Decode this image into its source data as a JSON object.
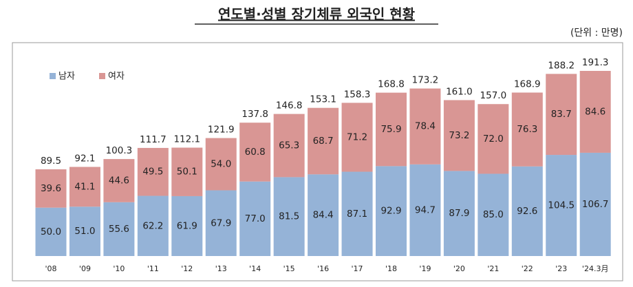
{
  "chart_data": {
    "type": "bar",
    "stacked": true,
    "title": "연도별·성별 장기체류 외국인 현황",
    "subtitle": "(단위 : 만명)",
    "categories": [
      "'08",
      "'09",
      "'10",
      "'11",
      "'12",
      "'13",
      "'14",
      "'15",
      "'16",
      "'17",
      "'18",
      "'19",
      "'20",
      "'21",
      "'22",
      "'23",
      "'24.3月"
    ],
    "series": [
      {
        "name": "남자",
        "color": "#95b3d7",
        "values": [
          50.0,
          51.0,
          55.6,
          62.2,
          61.9,
          67.9,
          77.0,
          81.5,
          84.4,
          87.1,
          92.9,
          94.7,
          87.9,
          85.0,
          92.6,
          104.5,
          106.7
        ],
        "value_labels": [
          "50.0",
          "51.0",
          "55.6",
          "62.2",
          "61.9",
          "67.9",
          "77.0",
          "81.5",
          "84.4",
          "87.1",
          "92.9",
          "94.7",
          "87.9",
          "85.0",
          "92.6",
          "104.5",
          "106.7"
        ]
      },
      {
        "name": "여자",
        "color": "#d99694",
        "values": [
          39.6,
          41.1,
          44.6,
          49.5,
          50.1,
          54.0,
          60.8,
          65.3,
          68.7,
          71.2,
          75.9,
          78.4,
          73.2,
          72.0,
          76.3,
          83.7,
          84.6
        ],
        "value_labels": [
          "39.6",
          "41.1",
          "44.6",
          "49.5",
          "50.1",
          "54.0",
          "60.8",
          "65.3",
          "68.7",
          "71.2",
          "75.9",
          "78.4",
          "73.2",
          "72.0",
          "76.3",
          "83.7",
          "84.6"
        ]
      }
    ],
    "totals": [
      89.5,
      92.1,
      100.3,
      111.7,
      112.1,
      121.9,
      137.8,
      146.8,
      153.1,
      158.3,
      168.8,
      173.2,
      161.0,
      157.0,
      168.9,
      188.2,
      191.3
    ],
    "total_labels": [
      "89.5",
      "92.1",
      "100.3",
      "111.7",
      "112.1",
      "121.9",
      "137.8",
      "146.8",
      "153.1",
      "158.3",
      "168.8",
      "173.2",
      "161.0",
      "157.0",
      "168.9",
      "188.2",
      "191.3"
    ],
    "legend": "top-left"
  }
}
